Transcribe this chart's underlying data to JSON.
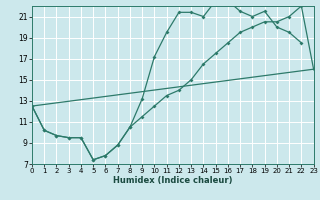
{
  "xlabel": "Humidex (Indice chaleur)",
  "bg_color": "#cce8ec",
  "grid_color": "#b8dde2",
  "line_color": "#2d7a6a",
  "xlim": [
    0,
    23
  ],
  "ylim": [
    7,
    22
  ],
  "xticks": [
    0,
    1,
    2,
    3,
    4,
    5,
    6,
    7,
    8,
    9,
    10,
    11,
    12,
    13,
    14,
    15,
    16,
    17,
    18,
    19,
    20,
    21,
    22,
    23
  ],
  "yticks": [
    7,
    9,
    11,
    13,
    15,
    17,
    19,
    21
  ],
  "line1_x": [
    0,
    1,
    2,
    3,
    4,
    5,
    6,
    7,
    8,
    9,
    10,
    11,
    12,
    13,
    14,
    15,
    16,
    17,
    18,
    19,
    20,
    21,
    22
  ],
  "line1_y": [
    12.5,
    10.2,
    9.7,
    9.5,
    9.5,
    7.4,
    7.8,
    8.8,
    10.5,
    13.2,
    17.2,
    19.5,
    21.4,
    21.4,
    21.0,
    22.5,
    22.5,
    21.5,
    21.0,
    21.5,
    20.0,
    19.5,
    18.5
  ],
  "line2_x": [
    0,
    1,
    2,
    3,
    4,
    5,
    6,
    7,
    8,
    9,
    10,
    11,
    12,
    13,
    14,
    15,
    16,
    17,
    18,
    19,
    20,
    21,
    22,
    23
  ],
  "line2_y": [
    12.5,
    10.2,
    9.7,
    9.5,
    9.5,
    7.4,
    7.8,
    8.8,
    10.5,
    11.5,
    12.5,
    13.5,
    14.0,
    15.0,
    16.5,
    17.5,
    18.5,
    19.5,
    20.0,
    20.5,
    20.5,
    21.0,
    22.0,
    16.0
  ],
  "line3_x": [
    0,
    23
  ],
  "line3_y": [
    12.5,
    16.0
  ]
}
